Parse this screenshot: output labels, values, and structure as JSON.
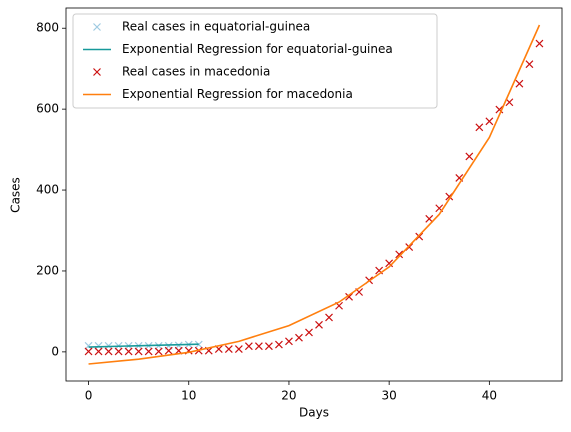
{
  "chart_data": {
    "type": "line",
    "xlabel": "Days",
    "ylabel": "Cases",
    "xlim": [
      -2.25,
      47.25
    ],
    "ylim": [
      -72,
      850
    ],
    "xticks": [
      0,
      10,
      20,
      30,
      40
    ],
    "yticks": [
      0,
      200,
      400,
      600,
      800
    ],
    "legend": "upper left",
    "series": [
      {
        "name": "Real cases in equatorial-guinea",
        "color": "#9ecae1",
        "marker": "x",
        "x": [
          0,
          1,
          2,
          3,
          4,
          5,
          6,
          7,
          8,
          9,
          10,
          11
        ],
        "values": [
          15,
          15,
          15,
          15,
          15,
          15,
          15,
          15,
          15,
          16,
          18,
          18
        ]
      },
      {
        "name": "Exponential Regression for equatorial-guinea",
        "color": "#17999a",
        "marker": "none",
        "x": [
          0,
          11
        ],
        "values": [
          12,
          19
        ]
      },
      {
        "name": "Real cases in macedonia",
        "color": "#cc1111",
        "marker": "x",
        "x": [
          0,
          1,
          2,
          3,
          4,
          5,
          6,
          7,
          8,
          9,
          10,
          11,
          12,
          13,
          14,
          15,
          16,
          17,
          18,
          19,
          20,
          21,
          22,
          23,
          24,
          25,
          26,
          27,
          28,
          29,
          30,
          31,
          32,
          33,
          34,
          35,
          36,
          37,
          38,
          39,
          40,
          41,
          42,
          43,
          44,
          45
        ],
        "values": [
          1,
          1,
          1,
          1,
          1,
          1,
          1,
          1,
          3,
          3,
          3,
          3,
          3,
          7,
          7,
          7,
          14,
          14,
          14,
          18,
          26,
          35,
          48,
          67,
          85,
          114,
          136,
          148,
          177,
          201,
          219,
          241,
          259,
          285,
          329,
          355,
          384,
          430,
          483,
          555,
          570,
          599,
          617,
          663,
          711,
          762
        ]
      },
      {
        "name": "Exponential Regression for macedonia",
        "color": "#ff7f0e",
        "marker": "none",
        "x": [
          0,
          5,
          10,
          15,
          20,
          25,
          30,
          35,
          40,
          45
        ],
        "values": [
          -30,
          -18,
          -1,
          26,
          65,
          123,
          210,
          340,
          530,
          808
        ]
      }
    ]
  }
}
